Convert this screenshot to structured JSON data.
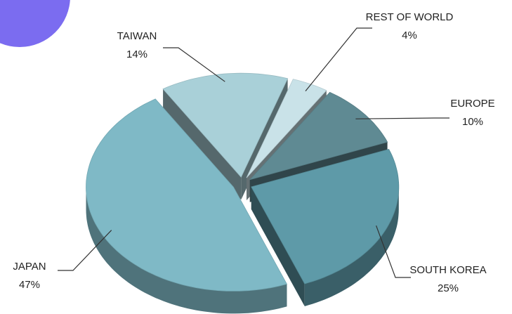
{
  "chart_data": {
    "type": "pie3d",
    "categories": [
      "TAIWAN",
      "REST OF WORLD",
      "EUROPE",
      "SOUTH KOREA",
      "JAPAN"
    ],
    "values": [
      14,
      4,
      10,
      25,
      47
    ],
    "value_labels": [
      "14%",
      "4%",
      "10%",
      "25%",
      "47%"
    ],
    "colors": [
      "#a9d0d8",
      "#c9e2e8",
      "#5f8a93",
      "#5e9aa8",
      "#7fb9c6"
    ]
  }
}
